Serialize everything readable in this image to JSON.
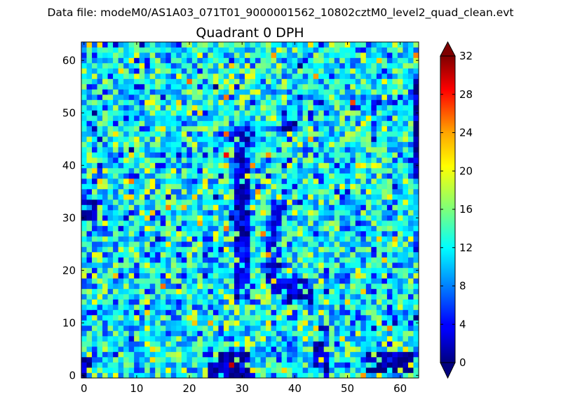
{
  "chart_data": {
    "type": "heatmap",
    "suptitle": "Data file: modeM0/AS1A03_071T01_9000001562_10802cztM0_level2_quad_clean.evt",
    "title": "Quadrant 0 DPH",
    "xlabel": "",
    "ylabel": "",
    "grid_size": [
      64,
      64
    ],
    "xlim": [
      -0.5,
      63.5
    ],
    "ylim": [
      -0.5,
      63.5
    ],
    "xticks": [
      "0",
      "10",
      "20",
      "30",
      "40",
      "50",
      "60"
    ],
    "yticks": [
      "0",
      "10",
      "20",
      "30",
      "40",
      "50",
      "60"
    ],
    "colormap": "jet",
    "vmin": 0,
    "vmax": 32,
    "colorbar_ticks": [
      "0",
      "4",
      "8",
      "12",
      "16",
      "20",
      "24",
      "28",
      "32"
    ],
    "colorbar_extend": "both",
    "typical_count": 12,
    "seed": 1562,
    "low_count_regions": [
      {
        "x": [
          24,
          31
        ],
        "y": [
          0,
          4
        ],
        "value": 1
      },
      {
        "x": [
          54,
          62
        ],
        "y": [
          1,
          4
        ],
        "value": 1
      },
      {
        "x": [
          29,
          31
        ],
        "y": [
          15,
          47
        ],
        "value": 3
      },
      {
        "x": [
          35,
          37
        ],
        "y": [
          16,
          33
        ],
        "value": 4
      },
      {
        "x": [
          38,
          43
        ],
        "y": [
          14,
          18
        ],
        "value": 3
      },
      {
        "x": [
          0,
          2
        ],
        "y": [
          30,
          33
        ],
        "value": 1
      },
      {
        "x": [
          0,
          1
        ],
        "y": [
          0,
          3
        ],
        "value": 1
      },
      {
        "x": [
          63,
          63
        ],
        "y": [
          38,
          56
        ],
        "value": 2
      },
      {
        "x": [
          44,
          46
        ],
        "y": [
          1,
          6
        ],
        "value": 2
      },
      {
        "x": [
          38,
          42
        ],
        "y": [
          47,
          48
        ],
        "value": 2
      }
    ],
    "hot_pixels": [
      {
        "x": 28,
        "y": 2,
        "value": 30
      },
      {
        "x": 27,
        "y": 42,
        "value": 28
      },
      {
        "x": 34,
        "y": 27,
        "value": 24
      },
      {
        "x": 16,
        "y": 32,
        "value": 24
      },
      {
        "x": 51,
        "y": 52,
        "value": 26
      },
      {
        "x": 27,
        "y": 46,
        "value": 25
      },
      {
        "x": 36,
        "y": 61,
        "value": 23
      }
    ]
  }
}
